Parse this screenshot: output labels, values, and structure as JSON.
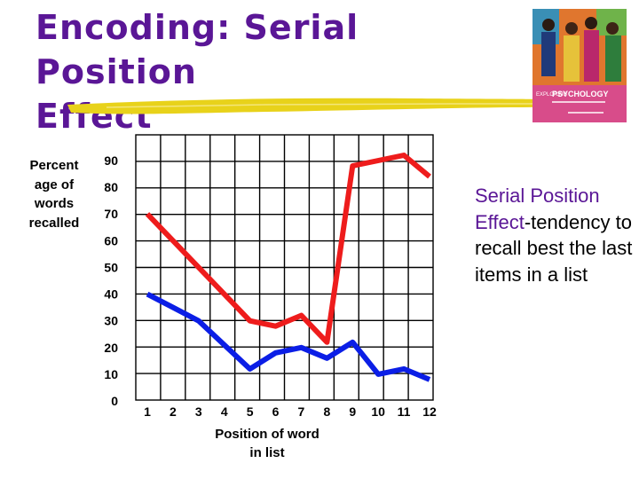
{
  "slide": {
    "title_line1": "Encoding: Serial Position",
    "title_line2": "Effect",
    "side_text_accent": "Serial Position Effect",
    "side_text_rest": "-tendency to recall best the last items in a list",
    "book_cover": {
      "brand_small": "EXPLORING",
      "brand_large": "PSYCHOLOGY"
    },
    "colors": {
      "title": "#5a1696",
      "underline": "#e8d21a",
      "red_series": "#ee1c1c",
      "blue_series": "#0b1ee6"
    }
  },
  "chart_data": {
    "type": "line",
    "ylabel": "Percent age of words recalled",
    "xlabel": "Position of word in list",
    "ylim": [
      0,
      90
    ],
    "y_ticks": [
      0,
      10,
      20,
      30,
      40,
      50,
      60,
      70,
      80,
      90
    ],
    "x": [
      1,
      2,
      3,
      4,
      5,
      6,
      7,
      8,
      9,
      10,
      11,
      12
    ],
    "x_tick_labels": [
      "1",
      "2",
      "3",
      "4",
      "5",
      "6",
      "7",
      "8",
      "9",
      "10",
      "11",
      "12"
    ],
    "grid": true,
    "series": [
      {
        "color": "#ee1c1c",
        "values": [
          70,
          60,
          50,
          40,
          30,
          28,
          32,
          22,
          88,
          90,
          92,
          84
        ]
      },
      {
        "color": "#0b1ee6",
        "values": [
          40,
          35,
          30,
          21,
          12,
          18,
          20,
          16,
          22,
          10,
          12,
          8
        ]
      }
    ]
  }
}
